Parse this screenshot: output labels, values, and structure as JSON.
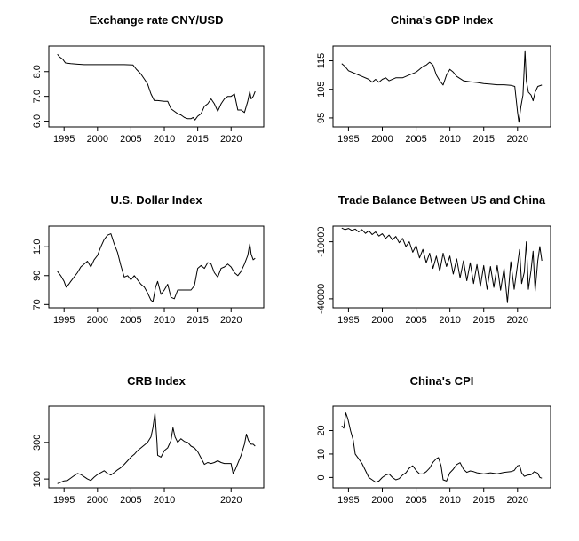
{
  "chart_data": [
    {
      "type": "line",
      "title": "Exchange rate CNY/USD",
      "xlabel": "",
      "ylabel": "",
      "xlim": [
        1994,
        2023.6
      ],
      "ylim": [
        5.9,
        8.9
      ],
      "xticks": [
        "1995",
        "2000",
        "2005",
        "2010",
        "2015",
        "2020"
      ],
      "yticks": [
        "6.0",
        "7.0",
        "8.0"
      ],
      "series": [
        {
          "x": [
            1994,
            1994.3,
            1994.8,
            1995.2,
            1996,
            1997,
            1998,
            2000,
            2002,
            2004,
            2005.3,
            2005.8,
            2006.5,
            2007,
            2007.5,
            2008,
            2008.5,
            2009,
            2010,
            2010.5,
            2011,
            2011.5,
            2012,
            2012.5,
            2013,
            2013.5,
            2014,
            2014.3,
            2014.6,
            2015,
            2015.5,
            2016,
            2016.5,
            2017,
            2017.5,
            2018,
            2018.5,
            2019,
            2019.5,
            2020,
            2020.5,
            2021,
            2021.5,
            2022,
            2022.5,
            2022.8,
            2023,
            2023.3,
            2023.6
          ],
          "y": [
            8.7,
            8.6,
            8.5,
            8.35,
            8.32,
            8.3,
            8.28,
            8.28,
            8.28,
            8.28,
            8.27,
            8.1,
            7.9,
            7.7,
            7.5,
            7.1,
            6.83,
            6.83,
            6.8,
            6.8,
            6.5,
            6.4,
            6.3,
            6.25,
            6.15,
            6.1,
            6.1,
            6.15,
            6.05,
            6.2,
            6.3,
            6.6,
            6.7,
            6.9,
            6.7,
            6.4,
            6.7,
            6.9,
            7.0,
            7.0,
            7.1,
            6.45,
            6.45,
            6.35,
            6.8,
            7.2,
            6.9,
            7.0,
            7.2
          ]
        }
      ]
    },
    {
      "type": "line",
      "title": "China's GDP Index",
      "xlabel": "",
      "ylabel": "",
      "xlim": [
        1994,
        2023.6
      ],
      "ylim": [
        93,
        119
      ],
      "xticks": [
        "1995",
        "2000",
        "2005",
        "2010",
        "2015",
        "2020"
      ],
      "yticks": [
        "95",
        "105",
        "115"
      ],
      "series": [
        {
          "x": [
            1994,
            1994.5,
            1995,
            1996,
            1997,
            1998,
            1998.5,
            1999,
            1999.5,
            2000,
            2000.5,
            2001,
            2002,
            2003,
            2004,
            2005,
            2005.5,
            2006,
            2006.5,
            2007,
            2007.5,
            2008,
            2008.5,
            2009,
            2009.5,
            2010,
            2010.5,
            2011,
            2012,
            2013,
            2014,
            2015,
            2016,
            2017,
            2018,
            2019,
            2019.6,
            2020,
            2020.2,
            2020.5,
            2020.8,
            2021,
            2021.1,
            2021.3,
            2021.6,
            2022,
            2022.3,
            2022.6,
            2023,
            2023.6
          ],
          "y": [
            114,
            113,
            111.5,
            110.5,
            109.5,
            108.5,
            107.5,
            108.5,
            107.5,
            108.5,
            109,
            108,
            109,
            109,
            110,
            111,
            112,
            113,
            113.5,
            114.5,
            113.5,
            110,
            108,
            106.5,
            110,
            112,
            111,
            109.5,
            108,
            107.6,
            107.4,
            107,
            106.8,
            106.6,
            106.6,
            106.4,
            106,
            97,
            93.5,
            99,
            103,
            113,
            118.5,
            108,
            104,
            103,
            101,
            104,
            106,
            106.5
          ]
        }
      ]
    },
    {
      "type": "line",
      "title": "U.S. Dollar Index",
      "xlabel": "",
      "ylabel": "",
      "xlim": [
        1994,
        2023.6
      ],
      "ylim": [
        70,
        122
      ],
      "xticks": [
        "1995",
        "2000",
        "2005",
        "2010",
        "2015",
        "2020"
      ],
      "yticks": [
        "70",
        "90",
        "110"
      ],
      "series": [
        {
          "x": [
            1994,
            1994.5,
            1995,
            1995.3,
            1995.7,
            1996,
            1997,
            1997.5,
            1998,
            1998.5,
            1999,
            1999.5,
            2000,
            2000.5,
            2001,
            2001.5,
            2002,
            2002.5,
            2003,
            2003.5,
            2004,
            2004.5,
            2005,
            2005.5,
            2006,
            2006.5,
            2007,
            2007.5,
            2008,
            2008.3,
            2008.7,
            2009,
            2009.5,
            2010,
            2010.5,
            2011,
            2011.5,
            2012,
            2013,
            2014,
            2014.5,
            2015,
            2015.5,
            2016,
            2016.5,
            2017,
            2017.5,
            2018,
            2018.5,
            2019,
            2019.5,
            2020,
            2020.5,
            2021,
            2021.5,
            2022,
            2022.5,
            2022.8,
            2023,
            2023.3,
            2023.6
          ],
          "y": [
            93,
            90,
            86,
            82,
            84,
            86,
            92,
            96,
            98,
            100,
            96,
            101,
            104,
            110,
            115,
            118,
            119,
            112,
            106,
            97,
            89,
            90,
            87,
            90,
            87,
            84,
            82,
            78,
            73,
            72,
            82,
            86,
            77,
            80,
            84,
            75,
            74,
            80,
            80,
            80,
            83,
            95,
            97,
            95,
            99,
            98,
            92,
            89,
            95,
            96,
            98,
            96,
            92,
            90,
            93,
            98,
            104,
            112,
            105,
            101,
            102
          ]
        }
      ]
    },
    {
      "type": "line",
      "title": "Trade Balance Between US and China",
      "xlabel": "",
      "ylabel": "",
      "xlim": [
        1994,
        2023.6
      ],
      "ylim": [
        -43000,
        -3500
      ],
      "xticks": [
        "1995",
        "2000",
        "2005",
        "2010",
        "2015",
        "2020"
      ],
      "yticks": [
        "-40000",
        "-10000"
      ],
      "series": [
        {
          "x": [
            1994,
            1994.5,
            1995,
            1995.5,
            1996,
            1996.5,
            1997,
            1997.5,
            1998,
            1998.5,
            1999,
            1999.5,
            2000,
            2000.5,
            2001,
            2001.5,
            2002,
            2002.5,
            2003,
            2003.5,
            2004,
            2004.5,
            2005,
            2005.5,
            2006,
            2006.5,
            2007,
            2007.5,
            2008,
            2008.5,
            2009,
            2009.5,
            2010,
            2010.5,
            2011,
            2011.5,
            2012,
            2012.5,
            2013,
            2013.5,
            2014,
            2014.5,
            2015,
            2015.5,
            2016,
            2016.5,
            2017,
            2017.5,
            2018,
            2018.5,
            2019,
            2019.5,
            2020,
            2020.3,
            2020.6,
            2021,
            2021.3,
            2021.6,
            2022,
            2022.3,
            2022.6,
            2023,
            2023.3,
            2023.6
          ],
          "y": [
            -2800,
            -3600,
            -3000,
            -4000,
            -3300,
            -4800,
            -3600,
            -5600,
            -4200,
            -6200,
            -4800,
            -7000,
            -5800,
            -8200,
            -6500,
            -9000,
            -7200,
            -10500,
            -8200,
            -12500,
            -10000,
            -15500,
            -12000,
            -18500,
            -14000,
            -21000,
            -16000,
            -24000,
            -17500,
            -25500,
            -16000,
            -23000,
            -17500,
            -27000,
            -19000,
            -29000,
            -20000,
            -30500,
            -21000,
            -32000,
            -22000,
            -33500,
            -22500,
            -35000,
            -23000,
            -34000,
            -22500,
            -35500,
            -24000,
            -42000,
            -20500,
            -35000,
            -22000,
            -14000,
            -32000,
            -26000,
            -10000,
            -35000,
            -25000,
            -15000,
            -36000,
            -20000,
            -12500,
            -20000
          ]
        }
      ]
    },
    {
      "type": "line",
      "title": "CRB Index",
      "xlabel": "",
      "ylabel": "",
      "xlim": [
        1994,
        2023.6
      ],
      "ylim": [
        70,
        480
      ],
      "xticks": [
        "1995",
        "2000",
        "2005",
        "2010",
        "2020"
      ],
      "yticks": [
        "100",
        "300"
      ],
      "series": [
        {
          "x": [
            1994,
            1994.5,
            1995,
            1995.5,
            1996,
            1996.5,
            1997,
            1997.5,
            1998,
            1998.5,
            1999,
            1999.5,
            2000,
            2000.5,
            2001,
            2001.5,
            2002,
            2002.5,
            2003,
            2003.5,
            2004,
            2004.5,
            2005,
            2005.5,
            2006,
            2006.5,
            2007,
            2007.5,
            2008,
            2008.3,
            2008.6,
            2008.9,
            2009,
            2009.5,
            2010,
            2010.5,
            2011,
            2011.3,
            2011.6,
            2012,
            2012.5,
            2013,
            2013.5,
            2014,
            2014.5,
            2015,
            2015.5,
            2016,
            2016.5,
            2017,
            2017.5,
            2018,
            2018.5,
            2019,
            2019.5,
            2020,
            2020.3,
            2020.6,
            2021,
            2021.5,
            2022,
            2022.3,
            2022.6,
            2023,
            2023.3,
            2023.6
          ],
          "y": [
            75,
            82,
            90,
            92,
            105,
            118,
            130,
            125,
            112,
            100,
            92,
            110,
            125,
            135,
            145,
            130,
            122,
            135,
            150,
            162,
            180,
            200,
            220,
            235,
            255,
            270,
            285,
            300,
            330,
            380,
            460,
            300,
            230,
            220,
            255,
            270,
            310,
            380,
            330,
            300,
            320,
            305,
            300,
            280,
            270,
            250,
            215,
            180,
            190,
            185,
            190,
            200,
            190,
            185,
            185,
            185,
            130,
            150,
            185,
            230,
            290,
            345,
            310,
            290,
            290,
            280
          ]
        }
      ]
    },
    {
      "type": "line",
      "title": "China's CPI",
      "xlabel": "",
      "ylabel": "",
      "xlim": [
        1994,
        2023.6
      ],
      "ylim": [
        -3,
        29
      ],
      "xticks": [
        "1995",
        "2000",
        "2005",
        "2010",
        "2015",
        "2020"
      ],
      "yticks": [
        "0",
        "10",
        "20"
      ],
      "series": [
        {
          "x": [
            1994,
            1994.3,
            1994.6,
            1994.9,
            1995.3,
            1995.7,
            1996,
            1996.5,
            1997,
            1997.5,
            1998,
            1998.5,
            1999,
            1999.5,
            2000,
            2000.5,
            2001,
            2001.5,
            2002,
            2002.5,
            2003,
            2003.5,
            2004,
            2004.5,
            2005,
            2005.5,
            2006,
            2006.5,
            2007,
            2007.5,
            2008,
            2008.3,
            2008.7,
            2009,
            2009.5,
            2010,
            2010.5,
            2011,
            2011.5,
            2012,
            2012.5,
            2013,
            2013.5,
            2014,
            2015,
            2016,
            2017,
            2018,
            2019,
            2019.5,
            2020,
            2020.3,
            2020.6,
            2021,
            2021.5,
            2022,
            2022.5,
            2023,
            2023.3,
            2023.6
          ],
          "y": [
            22,
            21,
            27.5,
            25,
            20,
            16,
            10,
            8,
            6,
            3,
            0,
            -1,
            -2,
            -1.5,
            0,
            1,
            1.5,
            0,
            -1,
            -0.5,
            1,
            2,
            4,
            5,
            3,
            1.5,
            1.5,
            2.5,
            4,
            6.5,
            8,
            8.5,
            5,
            -1,
            -1.5,
            2,
            3.5,
            5.5,
            6.3,
            3.5,
            2.2,
            2.8,
            2.5,
            2,
            1.5,
            2,
            1.6,
            2.2,
            2.5,
            3,
            5,
            5.2,
            2,
            0.5,
            1,
            1.2,
            2.5,
            1.8,
            0,
            -0.3
          ]
        }
      ]
    }
  ]
}
